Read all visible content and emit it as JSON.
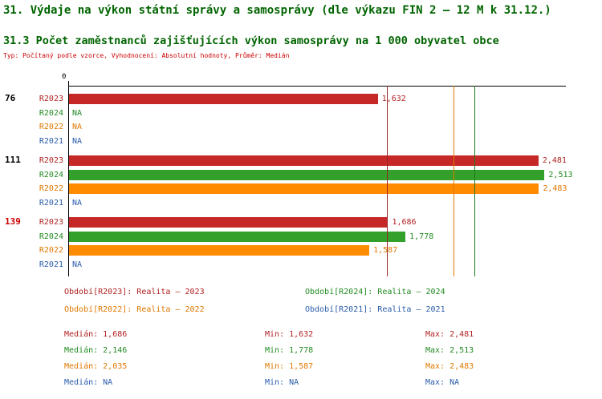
{
  "title": "31. Výdaje na výkon státní správy a samosprávy (dle výkazu FIN 2 – 12 M k 31.12.)",
  "subtitle": "31.3 Počet zaměstnanců zajišťujících výkon samosprávy na 1 000 obyvatel obce",
  "meta": "Typ: Počítaný podle vzorce, Vyhodnocení: Absolutní hodnoty, Průměr: Medián",
  "colors": {
    "title_green": "#006400",
    "meta_red": "#cc0000",
    "axis_black": "#000000"
  },
  "chart_data": {
    "type": "bar",
    "orientation": "horizontal",
    "x_axis": {
      "origin_label": "0",
      "min": 0,
      "max": 2630,
      "gridlines": false
    },
    "na_label": "NA",
    "series_styles": [
      {
        "id": "R2023",
        "bar_color": "#c62828",
        "text_color": "#b22222"
      },
      {
        "id": "R2024",
        "bar_color": "#33a02c",
        "text_color": "#228b22"
      },
      {
        "id": "R2022",
        "bar_color": "#ff8c00",
        "text_color": "#e07800"
      },
      {
        "id": "R2021",
        "bar_color": null,
        "text_color": "#2a5caa"
      }
    ],
    "groups": [
      {
        "label": "76",
        "label_color": "#000000",
        "rows": [
          {
            "series": "R2023",
            "value": 1632,
            "display": "1,632"
          },
          {
            "series": "R2024",
            "value": null,
            "display": "NA"
          },
          {
            "series": "R2022",
            "value": null,
            "display": "NA"
          },
          {
            "series": "R2021",
            "value": null,
            "display": "NA"
          }
        ]
      },
      {
        "label": "111",
        "label_color": "#000000",
        "rows": [
          {
            "series": "R2023",
            "value": 2481,
            "display": "2,481"
          },
          {
            "series": "R2024",
            "value": 2513,
            "display": "2,513"
          },
          {
            "series": "R2022",
            "value": 2483,
            "display": "2,483"
          },
          {
            "series": "R2021",
            "value": null,
            "display": "NA"
          }
        ]
      },
      {
        "label": "139",
        "label_color": "#cc0000",
        "rows": [
          {
            "series": "R2023",
            "value": 1686,
            "display": "1,686"
          },
          {
            "series": "R2024",
            "value": 1778,
            "display": "1,778"
          },
          {
            "series": "R2022",
            "value": 1587,
            "display": "1,587"
          },
          {
            "series": "R2021",
            "value": null,
            "display": "NA"
          }
        ]
      }
    ],
    "median_lines": [
      {
        "series": "R2023",
        "value": 1686,
        "color": "#992222"
      },
      {
        "series": "R2024",
        "value": 2146,
        "color": "#1f7a1f"
      },
      {
        "series": "R2022",
        "value": 2035,
        "color": "#e07800"
      }
    ]
  },
  "legend": {
    "items": [
      {
        "series": "R2023",
        "text": "Období[R2023]: Realita – 2023",
        "color": "#b22222"
      },
      {
        "series": "R2024",
        "text": "Období[R2024]: Realita – 2024",
        "color": "#228b22"
      },
      {
        "series": "R2022",
        "text": "Období[R2022]: Realita – 2022",
        "color": "#e07800"
      },
      {
        "series": "R2021",
        "text": "Období[R2021]: Realita – 2021",
        "color": "#2a5caa"
      }
    ]
  },
  "stats": {
    "labels": {
      "median": "Medián",
      "min": "Min",
      "max": "Max"
    },
    "rows": [
      {
        "series": "R2023",
        "color": "#b22222",
        "median": "1,686",
        "min": "1,632",
        "max": "2,481"
      },
      {
        "series": "R2024",
        "color": "#228b22",
        "median": "2,146",
        "min": "1,778",
        "max": "2,513"
      },
      {
        "series": "R2022",
        "color": "#e07800",
        "median": "2,035",
        "min": "1,587",
        "max": "2,483"
      },
      {
        "series": "R2021",
        "color": "#2a5caa",
        "median": "NA",
        "min": "NA",
        "max": "NA"
      }
    ]
  }
}
